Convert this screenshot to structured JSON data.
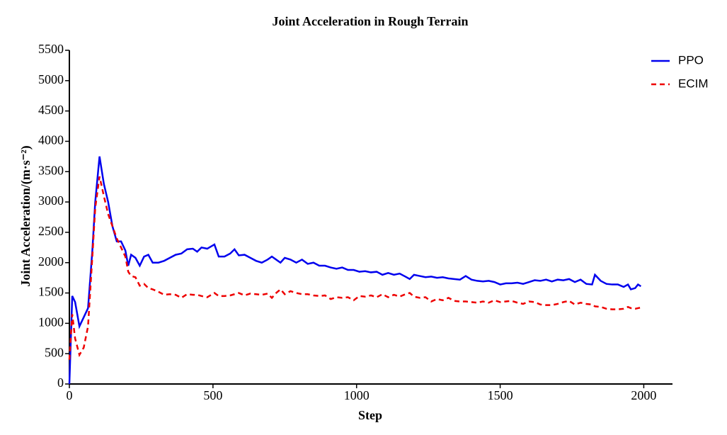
{
  "chart_data": {
    "type": "line",
    "title": "Joint Acceleration in Rough Terrain",
    "xlabel": "Step",
    "ylabel": "Joint Acceleration/(m·s⁻²)",
    "x": [
      0,
      10,
      20,
      35,
      50,
      65,
      80,
      90,
      105,
      120,
      135,
      150,
      165,
      180,
      195,
      205,
      215,
      230,
      245,
      260,
      275,
      290,
      310,
      330,
      350,
      370,
      390,
      410,
      430,
      445,
      460,
      480,
      505,
      520,
      540,
      560,
      575,
      590,
      610,
      630,
      650,
      670,
      690,
      705,
      720,
      735,
      750,
      770,
      790,
      810,
      830,
      850,
      870,
      890,
      910,
      930,
      950,
      970,
      990,
      1010,
      1030,
      1050,
      1070,
      1090,
      1110,
      1130,
      1150,
      1170,
      1185,
      1200,
      1220,
      1240,
      1260,
      1280,
      1300,
      1320,
      1340,
      1360,
      1380,
      1400,
      1420,
      1440,
      1460,
      1480,
      1500,
      1520,
      1540,
      1560,
      1580,
      1600,
      1620,
      1640,
      1660,
      1680,
      1700,
      1720,
      1740,
      1760,
      1780,
      1800,
      1820,
      1830,
      1850,
      1870,
      1890,
      1910,
      1930,
      1945,
      1955,
      1970,
      1980,
      1990
    ],
    "series": [
      {
        "name": "PPO",
        "color": "#0000ee",
        "dash": "solid",
        "values": [
          0,
          1450,
          1350,
          950,
          1100,
          1250,
          2200,
          3000,
          3750,
          3300,
          3000,
          2600,
          2350,
          2350,
          2200,
          1950,
          2130,
          2080,
          1950,
          2100,
          2130,
          2000,
          2000,
          2030,
          2080,
          2130,
          2150,
          2220,
          2230,
          2180,
          2250,
          2230,
          2300,
          2100,
          2100,
          2150,
          2220,
          2120,
          2130,
          2080,
          2030,
          2000,
          2050,
          2100,
          2050,
          2000,
          2080,
          2050,
          2000,
          2050,
          1980,
          2000,
          1950,
          1950,
          1920,
          1900,
          1920,
          1880,
          1880,
          1850,
          1860,
          1840,
          1850,
          1800,
          1830,
          1800,
          1820,
          1770,
          1730,
          1800,
          1780,
          1760,
          1770,
          1750,
          1760,
          1740,
          1730,
          1720,
          1780,
          1720,
          1700,
          1690,
          1700,
          1680,
          1640,
          1660,
          1660,
          1670,
          1650,
          1680,
          1710,
          1700,
          1720,
          1690,
          1720,
          1710,
          1730,
          1680,
          1720,
          1650,
          1640,
          1800,
          1700,
          1650,
          1640,
          1640,
          1600,
          1640,
          1560,
          1580,
          1640,
          1610
        ]
      },
      {
        "name": "ECIM",
        "color": "#ee0000",
        "dash": "dashed",
        "values": [
          400,
          1150,
          750,
          480,
          600,
          950,
          2100,
          2900,
          3420,
          3100,
          2800,
          2600,
          2400,
          2250,
          2100,
          1850,
          1780,
          1760,
          1620,
          1650,
          1580,
          1560,
          1520,
          1470,
          1480,
          1470,
          1420,
          1480,
          1470,
          1470,
          1450,
          1430,
          1500,
          1450,
          1450,
          1460,
          1480,
          1500,
          1460,
          1490,
          1480,
          1470,
          1490,
          1420,
          1500,
          1560,
          1480,
          1530,
          1500,
          1480,
          1480,
          1460,
          1450,
          1460,
          1400,
          1430,
          1420,
          1430,
          1380,
          1450,
          1440,
          1460,
          1430,
          1480,
          1430,
          1470,
          1440,
          1480,
          1500,
          1440,
          1420,
          1430,
          1360,
          1400,
          1380,
          1420,
          1370,
          1360,
          1360,
          1350,
          1340,
          1360,
          1340,
          1380,
          1350,
          1360,
          1370,
          1340,
          1320,
          1360,
          1350,
          1310,
          1300,
          1300,
          1320,
          1350,
          1370,
          1310,
          1340,
          1320,
          1310,
          1280,
          1270,
          1240,
          1230,
          1230,
          1240,
          1270,
          1250,
          1240,
          1250,
          1260
        ]
      }
    ],
    "xlim": [
      0,
      2100
    ],
    "xticks": [
      0,
      500,
      1000,
      1500,
      2000
    ],
    "ylim": [
      0,
      5500
    ],
    "yticks": [
      0,
      500,
      1000,
      1500,
      2000,
      2500,
      3000,
      3500,
      4000,
      4500,
      5000,
      5500
    ],
    "grid": false,
    "legend": "upper right"
  }
}
